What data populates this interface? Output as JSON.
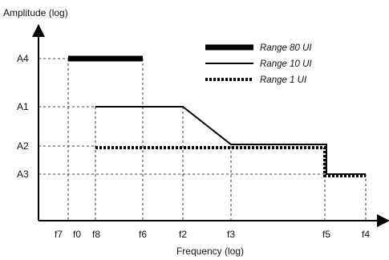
{
  "chart_data": {
    "type": "line",
    "ylabel": "Amplitude (log)",
    "xlabel": "Frequency (log)",
    "x_ticks": [
      "f7",
      "f0",
      "f8",
      "f6",
      "f2",
      "f3",
      "f5",
      "f4"
    ],
    "y_ticks": [
      "A4",
      "A1",
      "A2",
      "A3"
    ],
    "series": [
      {
        "name": "Range 80 UI",
        "style": "thick-solid",
        "points": [
          [
            "f0",
            "A4"
          ],
          [
            "f6",
            "A4"
          ]
        ]
      },
      {
        "name": "Range 10 UI",
        "style": "solid",
        "points": [
          [
            "f8",
            "A1"
          ],
          [
            "f2",
            "A1"
          ],
          [
            "f3",
            "A2"
          ],
          [
            "f5",
            "A2"
          ],
          [
            "f5",
            "A3"
          ],
          [
            "f4",
            "A3"
          ]
        ]
      },
      {
        "name": "Range 1 UI",
        "style": "dotted",
        "points": [
          [
            "f8",
            "A2"
          ],
          [
            "f5",
            "A2"
          ],
          [
            "f5",
            "A3"
          ],
          [
            "f4",
            "A3"
          ]
        ]
      }
    ],
    "legend_position": "top-right",
    "grid": "dashed reference lines"
  }
}
